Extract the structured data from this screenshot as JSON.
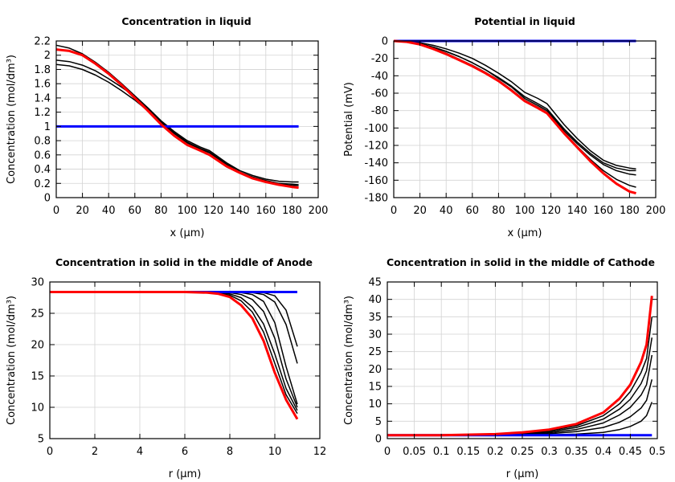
{
  "chart_data": [
    {
      "type": "line",
      "title": "Concentration in liquid",
      "xlabel": "x (µm)",
      "ylabel": "Concentration (mol/dm³)",
      "xlim": [
        0,
        200
      ],
      "ylim": [
        0,
        2.2
      ],
      "xticks": [
        0,
        20,
        40,
        60,
        80,
        100,
        120,
        140,
        160,
        180,
        200
      ],
      "yticks": [
        0,
        0.2,
        0.4,
        0.6,
        0.8,
        1,
        1.2,
        1.4,
        1.6,
        1.8,
        2,
        2.2
      ],
      "grid": true,
      "x": [
        0,
        10,
        20,
        30,
        40,
        50,
        60,
        70,
        80,
        90,
        100,
        110,
        117,
        130,
        140,
        150,
        160,
        170,
        180,
        185
      ],
      "series": [
        {
          "color": "#000000",
          "values": [
            2.14,
            2.1,
            2.02,
            1.9,
            1.76,
            1.6,
            1.43,
            1.26,
            1.08,
            0.93,
            0.8,
            0.71,
            0.66,
            0.49,
            0.38,
            0.31,
            0.26,
            0.23,
            0.22,
            0.22
          ]
        },
        {
          "color": "#000000",
          "values": [
            1.93,
            1.91,
            1.86,
            1.78,
            1.67,
            1.55,
            1.42,
            1.25,
            1.07,
            0.91,
            0.78,
            0.69,
            0.64,
            0.47,
            0.36,
            0.29,
            0.24,
            0.2,
            0.19,
            0.18
          ]
        },
        {
          "color": "#000000",
          "values": [
            1.87,
            1.85,
            1.8,
            1.72,
            1.62,
            1.5,
            1.37,
            1.22,
            1.05,
            0.9,
            0.77,
            0.68,
            0.63,
            0.46,
            0.35,
            0.28,
            0.23,
            0.19,
            0.17,
            0.17
          ]
        },
        {
          "color": "#0000ff",
          "values": [
            1,
            1,
            1,
            1,
            1,
            1,
            1,
            1,
            1,
            1,
            1,
            1,
            1,
            1,
            1,
            1,
            1,
            1,
            1,
            1
          ]
        },
        {
          "color": "#ff0000",
          "values": [
            2.08,
            2.06,
            2.0,
            1.88,
            1.74,
            1.58,
            1.4,
            1.22,
            1.03,
            0.87,
            0.74,
            0.66,
            0.6,
            0.44,
            0.35,
            0.27,
            0.22,
            0.18,
            0.15,
            0.14
          ]
        }
      ]
    },
    {
      "type": "line",
      "title": "Potential in liquid",
      "xlabel": "x (µm)",
      "ylabel": "Potential (mV)",
      "xlim": [
        0,
        200
      ],
      "ylim": [
        -180,
        0
      ],
      "xticks": [
        0,
        20,
        40,
        60,
        80,
        100,
        120,
        140,
        160,
        180,
        200
      ],
      "yticks": [
        0,
        -20,
        -40,
        -60,
        -80,
        -100,
        -120,
        -140,
        -160,
        -180
      ],
      "grid": true,
      "x": [
        0,
        10,
        20,
        30,
        40,
        50,
        60,
        70,
        80,
        90,
        100,
        110,
        117,
        130,
        140,
        150,
        160,
        170,
        180,
        185
      ],
      "series": [
        {
          "color": "#000000",
          "values": [
            0,
            -1,
            -2,
            -5,
            -9,
            -14,
            -20,
            -28,
            -37,
            -47,
            -59,
            -66,
            -72,
            -96,
            -112,
            -126,
            -137,
            -143,
            -146,
            -147
          ]
        },
        {
          "color": "#000000",
          "values": [
            0,
            -1,
            -3,
            -7,
            -12,
            -18,
            -25,
            -33,
            -42,
            -52,
            -64,
            -72,
            -78,
            -101,
            -116,
            -129,
            -140,
            -146,
            -149,
            -149
          ]
        },
        {
          "color": "#000000",
          "values": [
            0,
            -1,
            -3,
            -7,
            -12,
            -18,
            -25,
            -33,
            -43,
            -53,
            -66,
            -74,
            -80,
            -103,
            -118,
            -131,
            -142,
            -149,
            -153,
            -154
          ]
        },
        {
          "color": "#000000",
          "values": [
            0,
            -1,
            -4,
            -8,
            -14,
            -21,
            -28,
            -36,
            -45,
            -56,
            -68,
            -76,
            -82,
            -105,
            -121,
            -136,
            -149,
            -159,
            -166,
            -168
          ]
        },
        {
          "color": "#0000ff",
          "values": [
            0,
            0,
            0,
            0,
            0,
            0,
            0,
            0,
            0,
            0,
            0,
            0,
            0,
            0,
            0,
            0,
            0,
            0,
            0,
            0
          ]
        },
        {
          "color": "#ff0000",
          "values": [
            0,
            -1,
            -4,
            -9,
            -15,
            -22,
            -29,
            -37,
            -46,
            -57,
            -69,
            -77,
            -83,
            -106,
            -122,
            -138,
            -152,
            -164,
            -173,
            -175
          ]
        }
      ]
    },
    {
      "type": "line",
      "title": "Concentration in solid in the middle of Anode",
      "xlabel": "r (µm)",
      "ylabel": "Concentration (mol/dm³)",
      "xlim": [
        0,
        12
      ],
      "ylim": [
        5,
        30
      ],
      "xticks": [
        0,
        2,
        4,
        6,
        8,
        10,
        12
      ],
      "yticks": [
        5,
        10,
        15,
        20,
        25,
        30
      ],
      "grid": true,
      "x": [
        0,
        2,
        4,
        6,
        7,
        7.5,
        8,
        8.5,
        9,
        9.5,
        10,
        10.5,
        11
      ],
      "series": [
        {
          "color": "#000000",
          "values": [
            28.4,
            28.4,
            28.4,
            28.4,
            28.4,
            28.4,
            28.4,
            28.4,
            28.4,
            28.3,
            27.8,
            25.5,
            19.7
          ]
        },
        {
          "color": "#000000",
          "values": [
            28.4,
            28.4,
            28.4,
            28.4,
            28.4,
            28.4,
            28.4,
            28.4,
            28.3,
            28.0,
            26.8,
            23.2,
            17.0
          ]
        },
        {
          "color": "#000000",
          "values": [
            28.4,
            28.4,
            28.4,
            28.4,
            28.4,
            28.4,
            28.4,
            28.3,
            28.0,
            26.9,
            23.5,
            16.5,
            10.5
          ]
        },
        {
          "color": "#000000",
          "values": [
            28.4,
            28.4,
            28.4,
            28.4,
            28.4,
            28.4,
            28.3,
            28.0,
            27.2,
            25.3,
            21.0,
            14.5,
            10.0
          ]
        },
        {
          "color": "#000000",
          "values": [
            28.4,
            28.4,
            28.4,
            28.4,
            28.4,
            28.3,
            28.1,
            27.5,
            26.0,
            23.3,
            18.5,
            13.0,
            9.5
          ]
        },
        {
          "color": "#000000",
          "values": [
            28.4,
            28.4,
            28.4,
            28.4,
            28.4,
            28.2,
            27.9,
            27.0,
            25.2,
            22.0,
            17.0,
            12.0,
            9.0
          ]
        },
        {
          "color": "#0000ff",
          "values": [
            28.4,
            28.4,
            28.4,
            28.4,
            28.4,
            28.4,
            28.4,
            28.4,
            28.4,
            28.4,
            28.4,
            28.4,
            28.4
          ]
        },
        {
          "color": "#ff0000",
          "values": [
            28.4,
            28.4,
            28.4,
            28.4,
            28.3,
            28.1,
            27.6,
            26.3,
            24.2,
            20.6,
            15.5,
            11.2,
            8.1
          ]
        }
      ]
    },
    {
      "type": "line",
      "title": "Concentration in solid in the middle of Cathode",
      "xlabel": "r (µm)",
      "ylabel": "Concentration (mol/dm³)",
      "xlim": [
        0,
        0.5
      ],
      "ylim": [
        0,
        45
      ],
      "xticks": [
        0,
        0.05,
        0.1,
        0.15,
        0.2,
        0.25,
        0.3,
        0.35,
        0.4,
        0.45,
        0.5
      ],
      "yticks": [
        0,
        5,
        10,
        15,
        20,
        25,
        30,
        35,
        40,
        45
      ],
      "grid": true,
      "x": [
        0,
        0.1,
        0.2,
        0.25,
        0.3,
        0.35,
        0.4,
        0.43,
        0.45,
        0.47,
        0.48,
        0.49
      ],
      "series": [
        {
          "color": "#000000",
          "values": [
            1,
            1,
            1.2,
            1.6,
            2.3,
            3.7,
            6.6,
            10,
            13.5,
            19,
            23,
            35
          ]
        },
        {
          "color": "#000000",
          "values": [
            1,
            1,
            1.1,
            1.4,
            2.0,
            3.2,
            5.6,
            8.5,
            11.3,
            15.8,
            19.5,
            29
          ]
        },
        {
          "color": "#000000",
          "values": [
            1,
            1,
            1.05,
            1.2,
            1.7,
            2.6,
            4.5,
            6.8,
            9,
            12.5,
            15.5,
            24
          ]
        },
        {
          "color": "#000000",
          "values": [
            1,
            1,
            1,
            1.1,
            1.4,
            2.0,
            3.2,
            4.7,
            6.3,
            8.8,
            11,
            17
          ]
        },
        {
          "color": "#000000",
          "values": [
            1,
            1,
            1,
            1,
            1.1,
            1.3,
            1.8,
            2.6,
            3.5,
            5,
            6.6,
            10.5
          ]
        },
        {
          "color": "#0000ff",
          "values": [
            1,
            1,
            1,
            1,
            1,
            1,
            1,
            1,
            1,
            1,
            1,
            1
          ]
        },
        {
          "color": "#ff0000",
          "values": [
            1,
            1,
            1.3,
            1.8,
            2.6,
            4.2,
            7.5,
            11.5,
            15.5,
            22,
            27,
            41
          ]
        }
      ]
    }
  ]
}
